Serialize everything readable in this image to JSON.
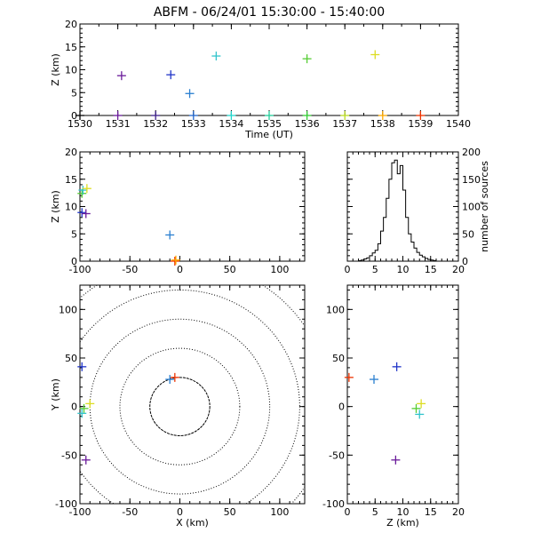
{
  "chart_data": [
    {
      "type": "scatter",
      "panel": "time-height",
      "title": "ABFM - 06/24/01 15:30:00 - 15:40:00",
      "xlabel": "Time (UT)",
      "ylabel": "Z (km)",
      "xlim": [
        1530,
        1540
      ],
      "ylim": [
        0,
        20
      ],
      "xticks": [
        "1530",
        "1531",
        "1532",
        "1533",
        "1534",
        "1535",
        "1536",
        "1537",
        "1538",
        "1539",
        "1540"
      ],
      "yticks": [
        "0",
        "5",
        "10",
        "15",
        "20"
      ],
      "points": [
        {
          "x": 1530.0,
          "y": 0.0,
          "color": "#000000"
        },
        {
          "x": 1531.1,
          "y": 8.7,
          "color": "#6a1b9a"
        },
        {
          "x": 1531.0,
          "y": 0.0,
          "color": "#6a1b9a"
        },
        {
          "x": 1532.0,
          "y": 0.0,
          "color": "#3d1f8a"
        },
        {
          "x": 1532.4,
          "y": 8.9,
          "color": "#2035c8"
        },
        {
          "x": 1532.9,
          "y": 4.8,
          "color": "#2a7fd0"
        },
        {
          "x": 1533.0,
          "y": 0.0,
          "color": "#2266cc"
        },
        {
          "x": 1533.6,
          "y": 13.0,
          "color": "#33c4cc"
        },
        {
          "x": 1534.0,
          "y": 0.0,
          "color": "#22d6cc"
        },
        {
          "x": 1535.0,
          "y": 0.0,
          "color": "#22cc99"
        },
        {
          "x": 1536.0,
          "y": 12.4,
          "color": "#55cc33"
        },
        {
          "x": 1536.0,
          "y": 0.0,
          "color": "#33cc33"
        },
        {
          "x": 1537.0,
          "y": 0.0,
          "color": "#bbdd22"
        },
        {
          "x": 1537.8,
          "y": 13.3,
          "color": "#dddd22"
        },
        {
          "x": 1538.0,
          "y": 0.0,
          "color": "#ffaa00"
        },
        {
          "x": 1539.0,
          "y": 0.0,
          "color": "#ee3300"
        }
      ]
    },
    {
      "type": "scatter",
      "panel": "x-height",
      "xlabel": "",
      "ylabel": "Z (km)",
      "xlim": [
        -100,
        125
      ],
      "ylim": [
        0,
        20
      ],
      "xticks": [
        "-100",
        "-50",
        "0",
        "50",
        "100"
      ],
      "yticks": [
        "0",
        "5",
        "10",
        "15",
        "20"
      ],
      "points": [
        {
          "x": -98,
          "y": 12.4,
          "color": "#55cc33"
        },
        {
          "x": -97,
          "y": 13.0,
          "color": "#33c4cc"
        },
        {
          "x": -93,
          "y": 13.3,
          "color": "#dddd22"
        },
        {
          "x": -98,
          "y": 8.9,
          "color": "#2035c8"
        },
        {
          "x": -94,
          "y": 8.7,
          "color": "#6a1b9a"
        },
        {
          "x": -10,
          "y": 4.8,
          "color": "#2a7fd0"
        },
        {
          "x": -5,
          "y": 0.0,
          "color": "#ee3300"
        },
        {
          "x": -4,
          "y": 0.2,
          "color": "#ffaa00"
        }
      ]
    },
    {
      "type": "bar",
      "panel": "height-histogram",
      "xlabel": "",
      "ylabel": "number of sources",
      "xlim": [
        0,
        20
      ],
      "ylim": [
        0,
        200
      ],
      "xticks": [
        "0",
        "5",
        "10",
        "15",
        "20"
      ],
      "yticks": [
        "0",
        "50",
        "100",
        "150",
        "200"
      ],
      "bin_width": 0.5,
      "bins_start": [
        2.0,
        2.5,
        3.0,
        3.5,
        4.0,
        4.5,
        5.0,
        5.5,
        6.0,
        6.5,
        7.0,
        7.5,
        8.0,
        8.5,
        9.0,
        9.5,
        10.0,
        10.5,
        11.0,
        11.5,
        12.0,
        12.5,
        13.0,
        13.5,
        14.0,
        14.5,
        15.0,
        15.5
      ],
      "values": [
        1,
        2,
        4,
        6,
        10,
        15,
        20,
        32,
        55,
        80,
        115,
        150,
        180,
        185,
        160,
        175,
        130,
        80,
        50,
        35,
        24,
        16,
        11,
        8,
        5,
        3,
        2,
        1
      ]
    },
    {
      "type": "scatter",
      "panel": "plan-view",
      "xlabel": "X (km)",
      "ylabel": "Y (km)",
      "xlim": [
        -100,
        125
      ],
      "ylim": [
        -100,
        125
      ],
      "xticks": [
        "-100",
        "-50",
        "0",
        "50",
        "100"
      ],
      "yticks": [
        "-100",
        "-50",
        "0",
        "50",
        "100"
      ],
      "range_rings_km": [
        30,
        60,
        90,
        120,
        150
      ],
      "points": [
        {
          "x": -98,
          "y": 41,
          "color": "#2035c8"
        },
        {
          "x": -96,
          "y": -2,
          "color": "#55cc33"
        },
        {
          "x": -98,
          "y": -7,
          "color": "#33c4cc"
        },
        {
          "x": -90,
          "y": 3,
          "color": "#dddd22"
        },
        {
          "x": -94,
          "y": -55,
          "color": "#6a1b9a"
        },
        {
          "x": -10,
          "y": 28,
          "color": "#2a7fd0"
        },
        {
          "x": -5,
          "y": 30,
          "color": "#ee3300"
        }
      ]
    },
    {
      "type": "scatter",
      "panel": "height-y",
      "xlabel": "Z (km)",
      "ylabel": "",
      "xlim": [
        0,
        20
      ],
      "ylim": [
        -100,
        125
      ],
      "xticks": [
        "0",
        "5",
        "10",
        "15",
        "20"
      ],
      "yticks": [
        "-100",
        "-50",
        "0",
        "50",
        "100"
      ],
      "points": [
        {
          "x": 0.3,
          "y": 30,
          "color": "#ee3300"
        },
        {
          "x": 4.8,
          "y": 28,
          "color": "#2a7fd0"
        },
        {
          "x": 8.9,
          "y": 41,
          "color": "#2035c8"
        },
        {
          "x": 8.7,
          "y": -55,
          "color": "#6a1b9a"
        },
        {
          "x": 12.4,
          "y": -2,
          "color": "#55cc33"
        },
        {
          "x": 13.0,
          "y": -8,
          "color": "#33c4cc"
        },
        {
          "x": 13.3,
          "y": 3,
          "color": "#dddd22"
        }
      ]
    }
  ]
}
